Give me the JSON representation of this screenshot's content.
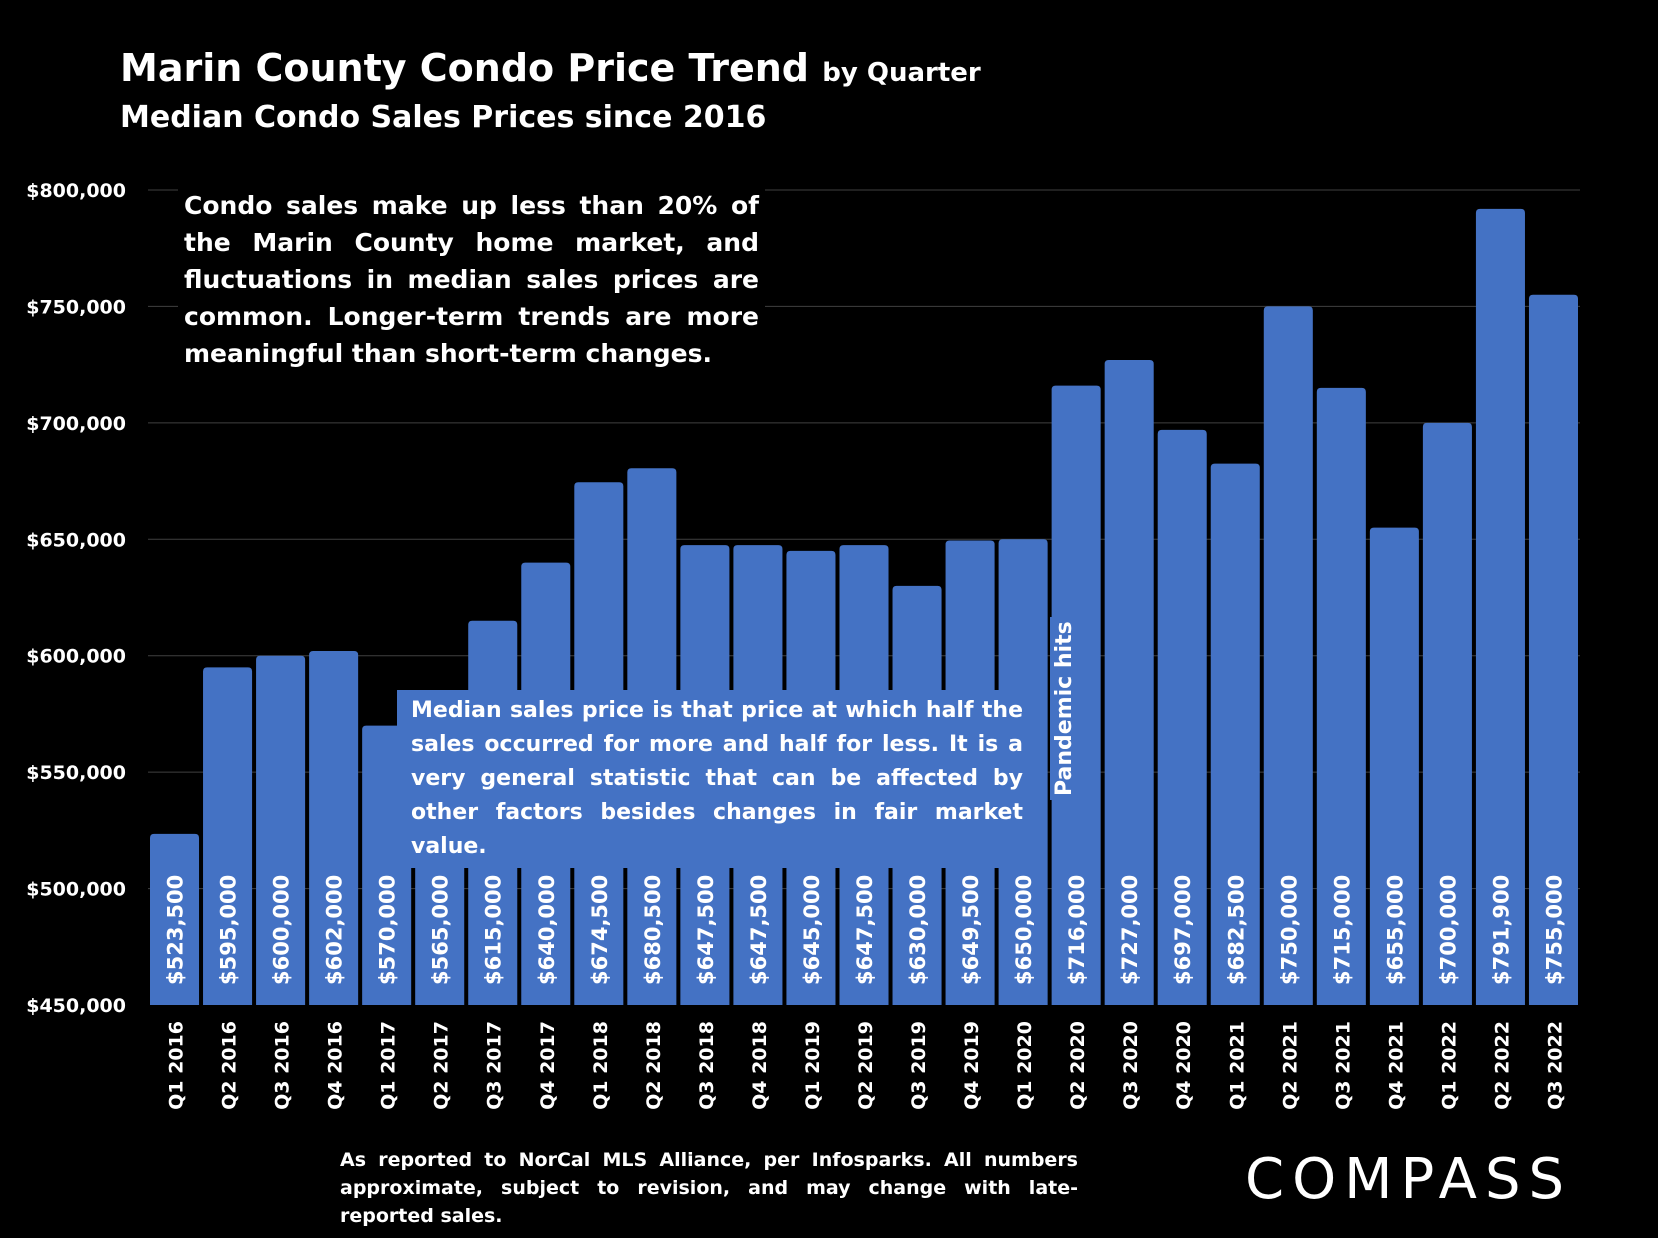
{
  "title": {
    "main": "Marin County Condo Price Trend",
    "suffix": "by Quarter",
    "subtitle": "Median Condo Sales Prices since 2016"
  },
  "annotations": {
    "note_top": "Condo sales make up less than 20% of the Marin County home market, and fluctuations in median sales prices are common. Longer-term trends are more meaningful than short-term changes.",
    "note_median": "Median sales price is that price at which half the sales occurred for more and half for less. It is a very general statistic that can be affected by other factors besides changes in fair market value.",
    "pandemic": "Pandemic hits"
  },
  "footer": "As reported to NorCal MLS Alliance, per Infosparks. All numbers approximate, subject to revision, and may change with late-reported sales.",
  "logo": "COMPASS",
  "colors": {
    "bar": "#4472c4",
    "background": "#000000",
    "grid": "#404040",
    "text": "#ffffff"
  },
  "chart_data": {
    "type": "bar",
    "categories": [
      "Q1 2016",
      "Q2 2016",
      "Q3 2016",
      "Q4 2016",
      "Q1 2017",
      "Q2 2017",
      "Q3 2017",
      "Q4 2017",
      "Q1 2018",
      "Q2 2018",
      "Q3 2018",
      "Q4 2018",
      "Q1 2019",
      "Q2 2019",
      "Q3 2019",
      "Q4 2019",
      "Q1 2020",
      "Q2 2020",
      "Q3 2020",
      "Q4 2020",
      "Q1 2021",
      "Q2 2021",
      "Q3 2021",
      "Q4 2021",
      "Q1 2022",
      "Q2 2022",
      "Q3 2022"
    ],
    "values": [
      523500,
      595000,
      600000,
      602000,
      570000,
      565000,
      615000,
      640000,
      674500,
      680500,
      647500,
      647500,
      645000,
      647500,
      630000,
      649500,
      650000,
      716000,
      727000,
      697000,
      682500,
      750000,
      715000,
      655000,
      700000,
      791900,
      755000
    ],
    "value_labels": [
      "$523,500",
      "$595,000",
      "$600,000",
      "$602,000",
      "$570,000",
      "$565,000",
      "$615,000",
      "$640,000",
      "$674,500",
      "$680,500",
      "$647,500",
      "$647,500",
      "$645,000",
      "$647,500",
      "$630,000",
      "$649,500",
      "$650,000",
      "$716,000",
      "$727,000",
      "$697,000",
      "$682,500",
      "$750,000",
      "$715,000",
      "$655,000",
      "$700,000",
      "$791,900",
      "$755,000"
    ],
    "y_ticks": [
      "$450,000",
      "$500,000",
      "$550,000",
      "$600,000",
      "$650,000",
      "$700,000",
      "$750,000",
      "$800,000"
    ],
    "ylim": [
      450000,
      800000
    ],
    "y_step": 50000,
    "grid": true,
    "legend": "none"
  }
}
